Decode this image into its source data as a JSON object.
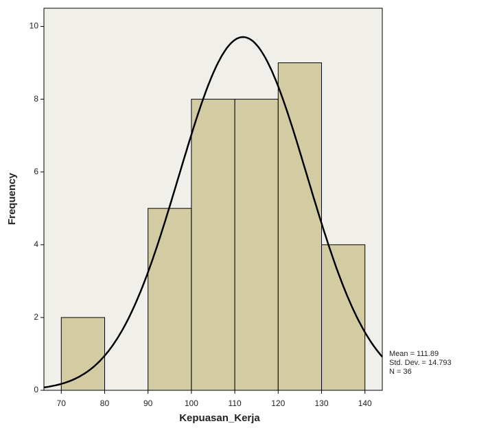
{
  "chart_data": {
    "type": "histogram",
    "xlabel": "Kepuasan_Kerja",
    "ylabel": "Frequency",
    "bins": [
      70,
      80,
      90,
      100,
      110,
      120,
      130,
      140
    ],
    "counts": [
      2,
      0,
      5,
      8,
      8,
      9,
      4
    ],
    "color": "#c9c08a",
    "curve_color": "#000000",
    "xlim": [
      66,
      144
    ],
    "ylim": [
      0,
      10.5
    ],
    "xticks": [
      70,
      80,
      90,
      100,
      110,
      120,
      130,
      140
    ],
    "yticks": [
      0,
      2,
      4,
      6,
      8,
      10
    ],
    "stats": [
      {
        "value": 111.89,
        "label": "Mean = 111.89"
      },
      {
        "value": 14.793,
        "label": "Std. Dev. = 14.793"
      },
      {
        "value": 36,
        "label": "N = 36"
      }
    ]
  }
}
